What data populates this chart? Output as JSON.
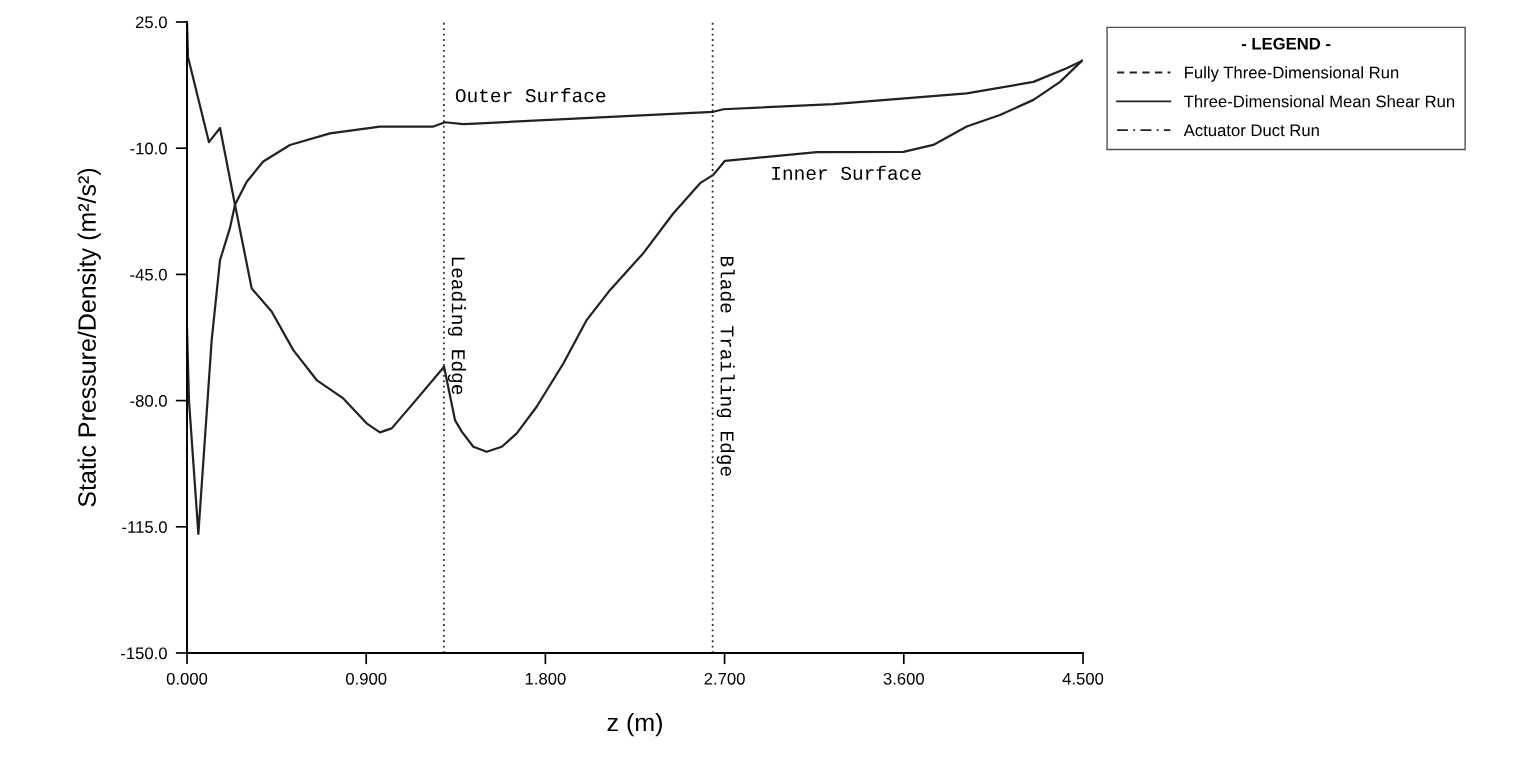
{
  "chart_data": {
    "type": "line",
    "xlabel": "z (m)",
    "ylabel": "Static Pressure/Density (m²/s²)",
    "legend_title": "- LEGEND -",
    "legend": "top right",
    "grid": false,
    "marker": "none",
    "xlim": [
      0,
      4.5
    ],
    "ylim": [
      -150,
      25
    ],
    "xticks": [
      {
        "value": 0,
        "label": "0.000"
      },
      {
        "value": 0.9,
        "label": "0.900"
      },
      {
        "value": 1.8,
        "label": "1.800"
      },
      {
        "value": 2.7,
        "label": "2.700"
      },
      {
        "value": 3.6,
        "label": "3.600"
      },
      {
        "value": 4.5,
        "label": "4.500"
      }
    ],
    "yticks": [
      {
        "value": 25,
        "label": "25.0"
      },
      {
        "value": -10,
        "label": "-10.0"
      },
      {
        "value": -45,
        "label": "-45.0"
      },
      {
        "value": -80,
        "label": "-80.0"
      },
      {
        "value": -115,
        "label": "-115.0"
      },
      {
        "value": -150,
        "label": "-150.0"
      }
    ],
    "series": [
      {
        "name": "Fully Three-Dimensional Run",
        "color": "#222222",
        "line_style": "dashed"
      },
      {
        "name": "Three-Dimensional Mean Shear Run",
        "color": "#222222",
        "line_style": "solid",
        "x": [
          0,
          0.01,
          0.057,
          0.124,
          0.166,
          0.216,
          0.241,
          0.3,
          0.383,
          0.517,
          0.718,
          0.969,
          1.237,
          1.296,
          1.388,
          1.472,
          2.643,
          2.694,
          3.246,
          3.916,
          4.251,
          4.418,
          4.494
        ],
        "values": [
          -60,
          -80,
          -117,
          -63.2,
          -41,
          -32.1,
          -25.7,
          -19.3,
          -13.7,
          -9.1,
          -5.9,
          -4,
          -4,
          -2.8,
          -3.3,
          -3.1,
          0.1,
          0.8,
          2.2,
          5.2,
          8.4,
          12.2,
          14.2
        ]
      },
      {
        "color": "#222222",
        "line_style": "solid",
        "x": [
          0,
          0.005,
          0.11,
          0.166,
          0.241,
          0.325,
          0.425,
          0.534,
          0.651,
          0.785,
          0.902,
          0.969,
          1.028,
          1.137,
          1.291,
          1.346,
          1.38,
          1.438,
          1.505,
          1.581,
          1.656,
          1.756,
          1.89,
          2.008,
          2.125,
          2.292,
          2.442,
          2.577,
          2.643,
          2.702,
          3.163,
          3.598,
          3.748,
          3.916,
          4.083,
          4.251,
          4.385,
          4.494
        ],
        "values": [
          25,
          15.3,
          -8.3,
          -4.4,
          -25.7,
          -48.9,
          -55.3,
          -66,
          -74.3,
          -79.4,
          -86.3,
          -88.8,
          -87.7,
          -80.7,
          -70.6,
          -85.4,
          -88.6,
          -92.8,
          -94.2,
          -92.8,
          -89.1,
          -81.7,
          -69.7,
          -57.6,
          -49.3,
          -39.1,
          -28.1,
          -19.7,
          -17.4,
          -13.5,
          -11.1,
          -11,
          -9.1,
          -4,
          -0.8,
          3.4,
          8.4,
          14.2
        ]
      },
      {
        "name": "Actuator Duct Run",
        "color": "#222222",
        "line_style": "dashdot"
      }
    ],
    "ref_lines": [
      {
        "axis": "x",
        "value": 1.29,
        "label": "Leading Edge",
        "color": "#333333",
        "line_style": "dotted"
      },
      {
        "axis": "x",
        "value": 2.64,
        "label": "Blade Trailing Edge",
        "color": "#333333",
        "line_style": "dotted"
      }
    ],
    "annotations": [
      "Outer Surface",
      "Inner Surface"
    ]
  }
}
